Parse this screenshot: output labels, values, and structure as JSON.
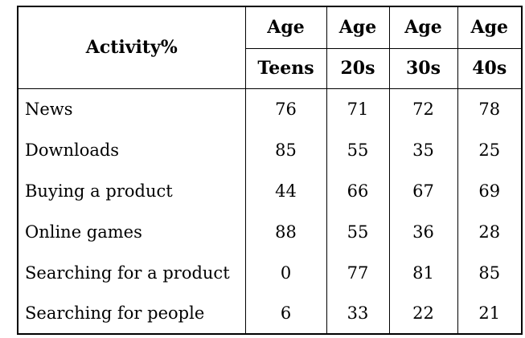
{
  "table": {
    "corner_header": "Activity%",
    "age_headers": [
      "Age",
      "Age",
      "Age",
      "Age"
    ],
    "age_groups": [
      "Teens",
      "20s",
      "30s",
      "40s"
    ],
    "rows": [
      {
        "activity": "News",
        "values": [
          76,
          71,
          72,
          78
        ]
      },
      {
        "activity": "Downloads",
        "values": [
          85,
          55,
          35,
          25
        ]
      },
      {
        "activity": "Buying a product",
        "values": [
          44,
          66,
          67,
          69
        ]
      },
      {
        "activity": "Online games",
        "values": [
          88,
          55,
          36,
          28
        ]
      },
      {
        "activity": "Searching for a product",
        "values": [
          0,
          77,
          81,
          85
        ]
      },
      {
        "activity": "Searching for people",
        "values": [
          6,
          33,
          22,
          21
        ]
      }
    ]
  },
  "chart_data": {
    "type": "table",
    "title": "Activity%",
    "categories": [
      "Teens",
      "20s",
      "30s",
      "40s"
    ],
    "series": [
      {
        "name": "News",
        "values": [
          76,
          71,
          72,
          78
        ]
      },
      {
        "name": "Downloads",
        "values": [
          85,
          55,
          35,
          25
        ]
      },
      {
        "name": "Buying a product",
        "values": [
          44,
          66,
          67,
          69
        ]
      },
      {
        "name": "Online games",
        "values": [
          88,
          55,
          36,
          28
        ]
      },
      {
        "name": "Searching for a product",
        "values": [
          0,
          77,
          81,
          85
        ]
      },
      {
        "name": "Searching for people",
        "values": [
          6,
          33,
          22,
          21
        ]
      }
    ]
  },
  "colors": {
    "border": "#000000",
    "text": "#000000",
    "background": "#ffffff"
  }
}
